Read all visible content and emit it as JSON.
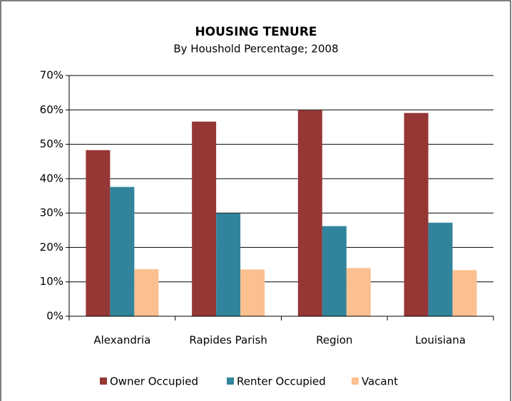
{
  "chart_data": {
    "type": "bar",
    "title": "HOUSING TENURE",
    "subtitle": "By Houshold Percentage; 2008",
    "categories": [
      "Alexandria",
      "Rapides Parish",
      "Region",
      "Louisiana"
    ],
    "series": [
      {
        "name": "Owner Occupied",
        "color": "#953735",
        "values": [
          48.3,
          56.6,
          59.9,
          59.1
        ]
      },
      {
        "name": "Renter Occupied",
        "color": "#31849b",
        "values": [
          37.6,
          29.9,
          26.2,
          27.2
        ]
      },
      {
        "name": "Vacant",
        "color": "#fac090",
        "values": [
          13.7,
          13.6,
          14.0,
          13.4
        ]
      }
    ],
    "ylim": [
      0,
      70
    ],
    "yticks": [
      {
        "value": 0,
        "label": "0%"
      },
      {
        "value": 10,
        "label": "10%"
      },
      {
        "value": 20,
        "label": "20%"
      },
      {
        "value": 30,
        "label": "30%"
      },
      {
        "value": 40,
        "label": "40%"
      },
      {
        "value": 50,
        "label": "50%"
      },
      {
        "value": 60,
        "label": "60%"
      },
      {
        "value": 70,
        "label": "70%"
      }
    ],
    "grid": true,
    "legend": "bottom"
  }
}
